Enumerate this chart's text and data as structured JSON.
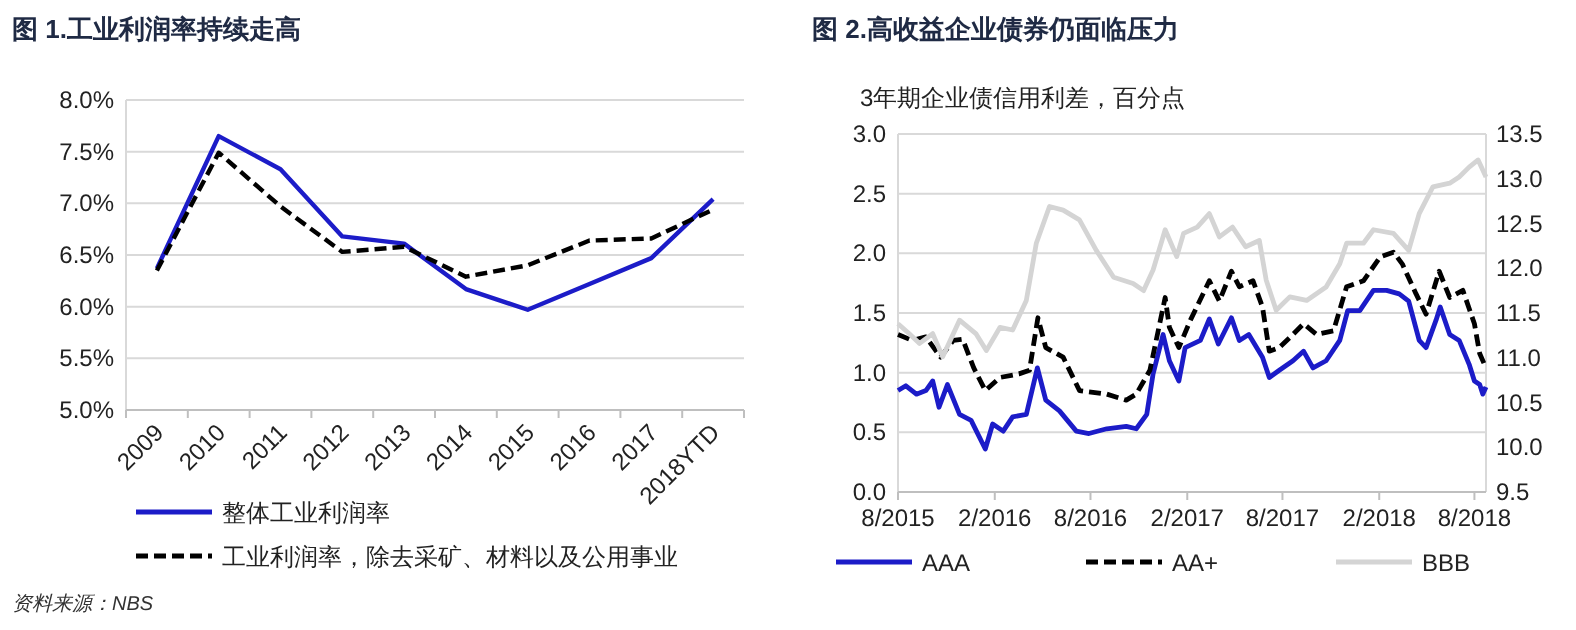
{
  "chart_data": [
    {
      "type": "line",
      "title": "图 1.工业利润率持续走高",
      "categories": [
        "2009",
        "2010",
        "2011",
        "2012",
        "2013",
        "2014",
        "2015",
        "2016",
        "2017",
        "2018YTD"
      ],
      "series": [
        {
          "name": "整体工业利润率",
          "color": "#1c1cc8",
          "line_style": "solid",
          "values": [
            6.37,
            7.65,
            7.33,
            6.68,
            6.61,
            6.17,
            5.97,
            6.22,
            6.47,
            7.04
          ]
        },
        {
          "name": "工业利润率，除去采矿、材料以及公用事业",
          "color": "#000000",
          "line_style": "dashed",
          "values": [
            6.35,
            7.49,
            6.97,
            6.53,
            6.58,
            6.29,
            6.4,
            6.64,
            6.66,
            6.94
          ]
        }
      ],
      "ylim": [
        5.0,
        8.0
      ],
      "yticks": [
        {
          "value": 5.0,
          "label": "5.0%"
        },
        {
          "value": 5.5,
          "label": "5.5%"
        },
        {
          "value": 6.0,
          "label": "6.0%"
        },
        {
          "value": 6.5,
          "label": "6.5%"
        },
        {
          "value": 7.0,
          "label": "7.0%"
        },
        {
          "value": 7.5,
          "label": "7.5%"
        },
        {
          "value": 8.0,
          "label": "8.0%"
        }
      ],
      "grid": "y",
      "legend": "bottom",
      "annotations": [
        "资料来源：NBS"
      ]
    },
    {
      "type": "line",
      "title": "图 2.高收益企业债券仍面临压力",
      "subtitle": "3年期企业债信用利差，百分点",
      "xlim": [
        "2015-08-01",
        "2018-08-23"
      ],
      "xticks": [
        {
          "value": "2015-08",
          "label": "8/2015"
        },
        {
          "value": "2016-02",
          "label": "2/2016"
        },
        {
          "value": "2016-08",
          "label": "8/2016"
        },
        {
          "value": "2017-02",
          "label": "2/2017"
        },
        {
          "value": "2017-08",
          "label": "8/2017"
        },
        {
          "value": "2018-02",
          "label": "2/2018"
        },
        {
          "value": "2018-08",
          "label": "8/2018"
        }
      ],
      "series": [
        {
          "name": "AAA",
          "color": "#1c1cc8",
          "line_style": "solid",
          "x": [
            "2015-08-01",
            "2015-08-16",
            "2015-09-05",
            "2015-09-23",
            "2015-10-06",
            "2015-10-18",
            "2015-11-03",
            "2015-11-26",
            "2015-12-18",
            "2016-01-14",
            "2016-01-28",
            "2016-02-17",
            "2016-03-06",
            "2016-04-01",
            "2016-04-22",
            "2016-05-08",
            "2016-06-03",
            "2016-07-05",
            "2016-07-29",
            "2016-09-01",
            "2016-10-08",
            "2016-10-27",
            "2016-11-16",
            "2016-11-28",
            "2016-12-17",
            "2016-12-29",
            "2017-01-16",
            "2017-01-28",
            "2017-02-26",
            "2017-03-15",
            "2017-04-01",
            "2017-04-26",
            "2017-05-11",
            "2017-05-29",
            "2017-06-24",
            "2017-07-07",
            "2017-07-26",
            "2017-08-21",
            "2017-09-10",
            "2017-09-28",
            "2017-10-23",
            "2017-11-18",
            "2017-12-03",
            "2017-12-26",
            "2018-01-21",
            "2018-02-15",
            "2018-03-11",
            "2018-03-29",
            "2018-04-18",
            "2018-05-01",
            "2018-05-20",
            "2018-05-28",
            "2018-06-15",
            "2018-07-03",
            "2018-07-22",
            "2018-08-01",
            "2018-08-11",
            "2018-08-17",
            "2018-08-23"
          ],
          "values": [
            0.85,
            0.89,
            0.82,
            0.85,
            0.93,
            0.71,
            0.9,
            0.65,
            0.6,
            0.36,
            0.57,
            0.51,
            0.63,
            0.65,
            1.04,
            0.77,
            0.68,
            0.51,
            0.49,
            0.53,
            0.55,
            0.53,
            0.65,
            0.99,
            1.32,
            1.1,
            0.93,
            1.21,
            1.27,
            1.45,
            1.24,
            1.46,
            1.27,
            1.32,
            1.13,
            0.96,
            1.02,
            1.1,
            1.18,
            1.04,
            1.1,
            1.27,
            1.52,
            1.52,
            1.69,
            1.69,
            1.66,
            1.6,
            1.27,
            1.21,
            1.44,
            1.55,
            1.32,
            1.27,
            1.07,
            0.93,
            0.9,
            0.82,
            0.88
          ]
        },
        {
          "name": "AA+",
          "color": "#000000",
          "line_style": "dashed",
          "x": [
            "2015-08-01",
            "2015-08-28",
            "2015-09-23",
            "2015-10-21",
            "2015-11-14",
            "2015-12-02",
            "2015-12-23",
            "2016-01-14",
            "2016-02-11",
            "2016-03-18",
            "2016-04-07",
            "2016-04-23",
            "2016-05-08",
            "2016-06-10",
            "2016-07-11",
            "2016-09-01",
            "2016-10-08",
            "2016-10-27",
            "2016-11-22",
            "2016-12-21",
            "2016-12-29",
            "2017-01-16",
            "2017-02-07",
            "2017-03-15",
            "2017-04-03",
            "2017-04-26",
            "2017-05-11",
            "2017-06-06",
            "2017-06-24",
            "2017-07-07",
            "2017-07-26",
            "2017-08-21",
            "2017-09-10",
            "2017-10-05",
            "2017-11-06",
            "2017-12-01",
            "2018-01-02",
            "2018-02-03",
            "2018-02-28",
            "2018-03-17",
            "2018-04-12",
            "2018-05-01",
            "2018-05-26",
            "2018-06-15",
            "2018-07-10",
            "2018-08-01",
            "2018-08-11",
            "2018-08-23"
          ],
          "values": [
            1.32,
            1.27,
            1.3,
            1.13,
            1.27,
            1.28,
            1.04,
            0.85,
            0.96,
            0.99,
            1.02,
            1.46,
            1.21,
            1.13,
            0.85,
            0.82,
            0.77,
            0.82,
            1.02,
            1.63,
            1.38,
            1.21,
            1.44,
            1.77,
            1.6,
            1.85,
            1.72,
            1.77,
            1.55,
            1.18,
            1.21,
            1.32,
            1.41,
            1.32,
            1.35,
            1.72,
            1.77,
            1.97,
            2.01,
            1.91,
            1.66,
            1.49,
            1.85,
            1.63,
            1.69,
            1.41,
            1.16,
            1.04
          ]
        },
        {
          "name": "BBB",
          "color": "#d4d4d4",
          "line_style": "solid",
          "axis": "y2",
          "x": [
            "2015-08-01",
            "2015-08-22",
            "2015-09-11",
            "2015-10-06",
            "2015-10-25",
            "2015-11-26",
            "2015-12-27",
            "2016-01-16",
            "2016-02-11",
            "2016-03-06",
            "2016-04-01",
            "2016-04-20",
            "2016-05-15",
            "2016-06-10",
            "2016-07-11",
            "2016-08-12",
            "2016-09-14",
            "2016-10-21",
            "2016-11-10",
            "2016-11-28",
            "2016-12-21",
            "2017-01-12",
            "2017-01-25",
            "2017-02-20",
            "2017-03-15",
            "2017-04-03",
            "2017-04-28",
            "2017-05-23",
            "2017-06-18",
            "2017-07-01",
            "2017-07-20",
            "2017-08-15",
            "2017-09-16",
            "2017-10-23",
            "2017-11-18",
            "2017-12-01",
            "2018-01-02",
            "2018-01-21",
            "2018-02-28",
            "2018-03-29",
            "2018-04-18",
            "2018-05-14",
            "2018-06-15",
            "2018-07-03",
            "2018-07-22",
            "2018-08-08",
            "2018-08-23"
          ],
          "values": [
            11.38,
            11.27,
            11.16,
            11.27,
            11.01,
            11.42,
            11.27,
            11.08,
            11.34,
            11.31,
            11.64,
            12.28,
            12.69,
            12.65,
            12.54,
            12.2,
            11.9,
            11.83,
            11.75,
            11.98,
            12.43,
            12.13,
            12.39,
            12.46,
            12.61,
            12.35,
            12.46,
            12.24,
            12.31,
            11.87,
            11.53,
            11.68,
            11.64,
            11.79,
            12.05,
            12.28,
            12.28,
            12.43,
            12.39,
            12.2,
            12.61,
            12.91,
            12.95,
            13.02,
            13.13,
            13.21,
            13.02
          ]
        }
      ],
      "ylim": [
        0.0,
        3.0
      ],
      "yticks": [
        {
          "value": 0,
          "label": "0.0"
        },
        {
          "value": 0.5,
          "label": "0.5"
        },
        {
          "value": 1,
          "label": "1.0"
        },
        {
          "value": 1.5,
          "label": "1.5"
        },
        {
          "value": 2,
          "label": "2.0"
        },
        {
          "value": 2.5,
          "label": "2.5"
        },
        {
          "value": 3,
          "label": "3.0"
        }
      ],
      "y2lim": [
        9.5,
        13.5
      ],
      "y2ticks": [
        {
          "value": 9.5,
          "label": "9.5"
        },
        {
          "value": 10,
          "label": "10.0"
        },
        {
          "value": 10.5,
          "label": "10.5"
        },
        {
          "value": 11,
          "label": "11.0"
        },
        {
          "value": 11.5,
          "label": "11.5"
        },
        {
          "value": 12,
          "label": "12.0"
        },
        {
          "value": 12.5,
          "label": "12.5"
        },
        {
          "value": 13,
          "label": "13.0"
        },
        {
          "value": 13.5,
          "label": "13.5"
        }
      ],
      "grid": "y",
      "legend": "bottom"
    }
  ]
}
